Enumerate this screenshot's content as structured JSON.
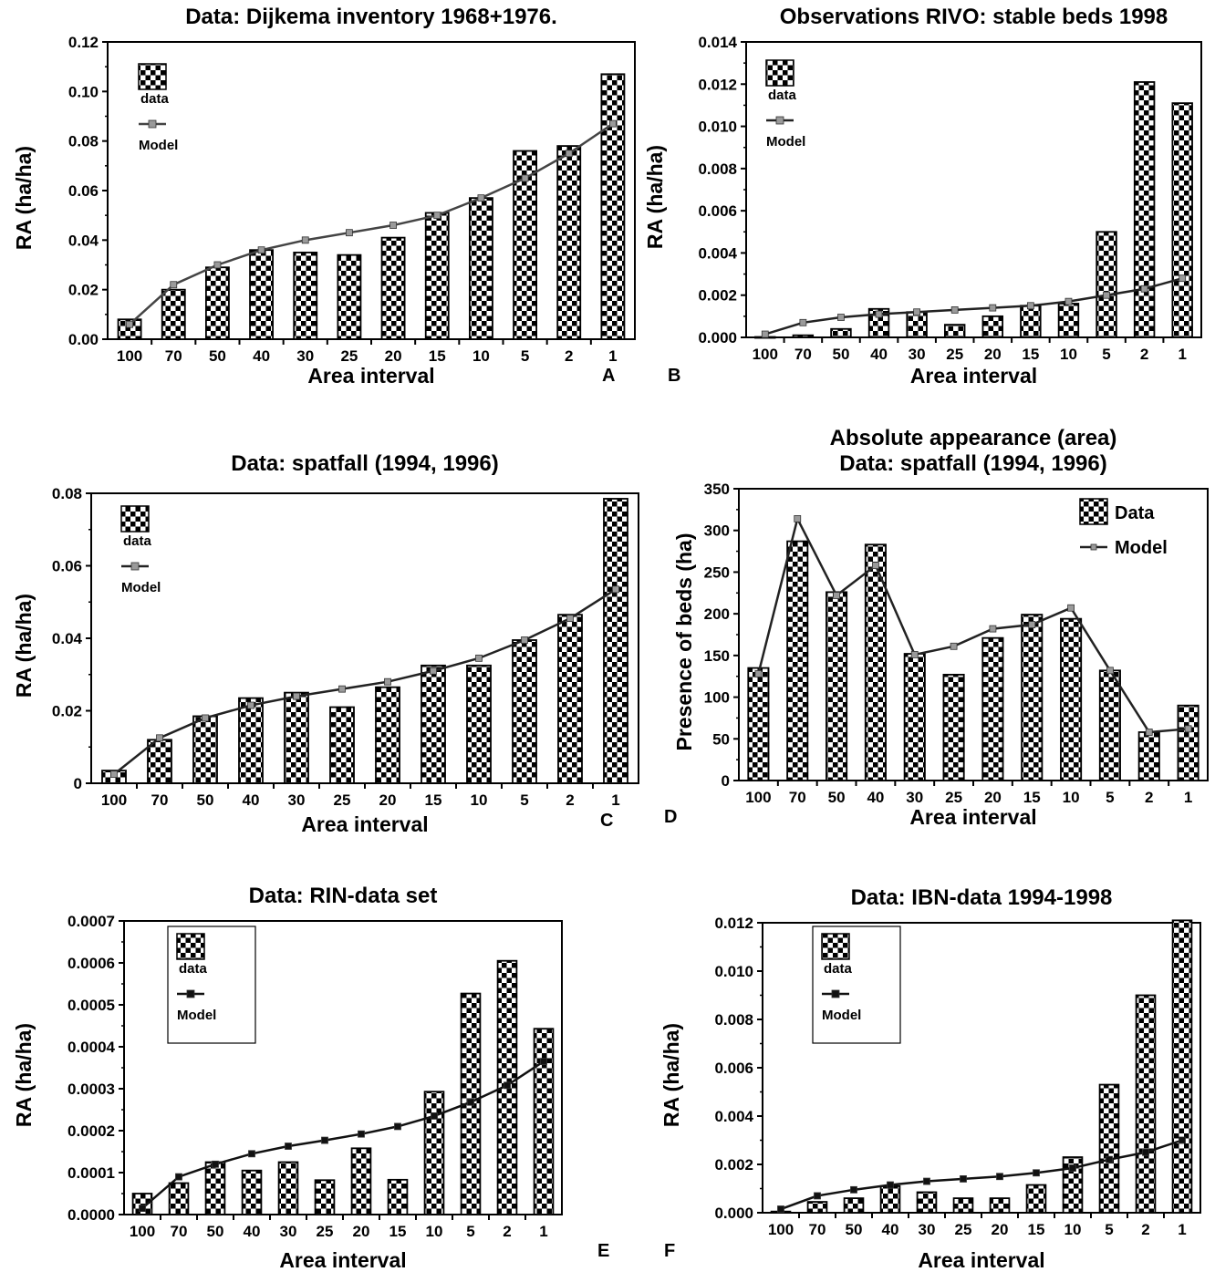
{
  "charts": [
    {
      "type": "bar",
      "title": [
        "Data: Dijkema inventory 1968+1976."
      ],
      "xlabel": "Area interval",
      "ylabel": "RA (ha/ha)",
      "categories": [
        "100",
        "70",
        "50",
        "40",
        "30",
        "25",
        "20",
        "15",
        "10",
        "5",
        "2",
        "1"
      ],
      "ylim": [
        0,
        0.12
      ],
      "yticks": [
        "0.00",
        "0.02",
        "0.04",
        "0.06",
        "0.08",
        "0.10",
        "0.12"
      ],
      "series": [
        {
          "name": "data",
          "type": "bar",
          "values": [
            0.008,
            0.02,
            0.029,
            0.036,
            0.035,
            0.034,
            0.041,
            0.051,
            0.057,
            0.076,
            0.078,
            0.107
          ]
        },
        {
          "name": "Model",
          "type": "line",
          "values": [
            0.006,
            0.022,
            0.03,
            0.036,
            0.04,
            0.043,
            0.046,
            0.05,
            0.057,
            0.065,
            0.075,
            0.087
          ]
        }
      ],
      "legend": {
        "placement": "top-left",
        "style": "stacked-small",
        "box": false
      },
      "panel_letter": "A",
      "colors": {
        "bar_check": "#000000",
        "line": "#444444",
        "marker": "#9a9a9a"
      }
    },
    {
      "type": "bar",
      "title": [
        "Observations RIVO: stable beds 1998"
      ],
      "xlabel": "Area interval",
      "ylabel": "RA (ha/ha)",
      "categories": [
        "100",
        "70",
        "50",
        "40",
        "30",
        "25",
        "20",
        "15",
        "10",
        "5",
        "2",
        "1"
      ],
      "ylim": [
        0,
        0.014
      ],
      "yticks": [
        "0.000",
        "0.002",
        "0.004",
        "0.006",
        "0.008",
        "0.010",
        "0.012",
        "0.014"
      ],
      "series": [
        {
          "name": "data",
          "type": "bar",
          "values": [
            2e-05,
            0.0001,
            0.0004,
            0.00135,
            0.0012,
            0.0006,
            0.001,
            0.0015,
            0.0016,
            0.005,
            0.0121,
            0.0111
          ]
        },
        {
          "name": "Model",
          "type": "line",
          "values": [
            0.00015,
            0.0007,
            0.00095,
            0.0011,
            0.0012,
            0.0013,
            0.0014,
            0.0015,
            0.0017,
            0.002,
            0.0023,
            0.0028
          ]
        }
      ],
      "legend": {
        "placement": "top-left",
        "style": "stacked-small",
        "box": false
      },
      "panel_letter": "B",
      "colors": {
        "bar_check": "#000000",
        "line": "#222222",
        "marker": "#9a9a9a"
      }
    },
    {
      "type": "bar",
      "title": [
        "Data: spatfall (1994, 1996)"
      ],
      "xlabel": "Area interval",
      "ylabel": "RA (ha/ha)",
      "categories": [
        "100",
        "70",
        "50",
        "40",
        "30",
        "25",
        "20",
        "15",
        "10",
        "5",
        "2",
        "1"
      ],
      "ylim": [
        0,
        0.08
      ],
      "yticks": [
        "0",
        "0.02",
        "0.04",
        "0.06",
        "0.08"
      ],
      "series": [
        {
          "name": "data",
          "type": "bar",
          "values": [
            0.0035,
            0.012,
            0.0185,
            0.0235,
            0.025,
            0.021,
            0.0265,
            0.0325,
            0.0325,
            0.0395,
            0.0465,
            0.0785
          ]
        },
        {
          "name": "Model",
          "type": "line",
          "values": [
            0.0025,
            0.0125,
            0.018,
            0.0215,
            0.024,
            0.026,
            0.028,
            0.031,
            0.0345,
            0.0395,
            0.0455,
            0.0535
          ]
        }
      ],
      "legend": {
        "placement": "top-left",
        "style": "stacked-small",
        "box": false
      },
      "panel_letter": "C",
      "colors": {
        "bar_check": "#000000",
        "line": "#222222",
        "marker": "#9a9a9a"
      }
    },
    {
      "type": "bar",
      "title": [
        "Absolute appearance (area)",
        "Data: spatfall (1994, 1996)"
      ],
      "xlabel": "Area interval",
      "ylabel": "Presence of beds (ha)",
      "categories": [
        "100",
        "70",
        "50",
        "40",
        "30",
        "25",
        "20",
        "15",
        "10",
        "5",
        "2",
        "1"
      ],
      "ylim": [
        0,
        350
      ],
      "yticks": [
        "0",
        "50",
        "100",
        "150",
        "200",
        "250",
        "300",
        "350"
      ],
      "series": [
        {
          "name": "Data",
          "type": "bar",
          "values": [
            135,
            287,
            226,
            283,
            152,
            127,
            171,
            199,
            194,
            132,
            58,
            90
          ]
        },
        {
          "name": "Model",
          "type": "line",
          "values": [
            128,
            314,
            222,
            258,
            151,
            161,
            182,
            187,
            207,
            132,
            58,
            62
          ]
        }
      ],
      "legend": {
        "placement": "top-right",
        "style": "inline-large",
        "box": false
      },
      "panel_letter": "D",
      "colors": {
        "bar_check": "#000000",
        "line": "#222222",
        "marker": "#9a9a9a"
      }
    },
    {
      "type": "bar",
      "title": [
        "Data: RIN-data set"
      ],
      "xlabel": "Area interval",
      "ylabel": "RA (ha/ha)",
      "categories": [
        "100",
        "70",
        "50",
        "40",
        "30",
        "25",
        "20",
        "15",
        "10",
        "5",
        "2",
        "1"
      ],
      "ylim": [
        0,
        0.0007
      ],
      "yticks": [
        "0.0000",
        "0.0001",
        "0.0002",
        "0.0003",
        "0.0004",
        "0.0005",
        "0.0006",
        "0.0007"
      ],
      "series": [
        {
          "name": "data",
          "type": "bar",
          "values": [
            5e-05,
            7.5e-05,
            0.000125,
            0.000105,
            0.000125,
            8.2e-05,
            0.000158,
            8.3e-05,
            0.000293,
            0.000527,
            0.000605,
            0.000443
          ]
        },
        {
          "name": "Model",
          "type": "line",
          "values": [
            1.5e-05,
            9e-05,
            0.00012,
            0.000145,
            0.000163,
            0.000177,
            0.000192,
            0.00021,
            0.000235,
            0.000268,
            0.000308,
            0.000365
          ]
        }
      ],
      "legend": {
        "placement": "top-left",
        "style": "stacked-small",
        "box": true
      },
      "panel_letter": "E",
      "colors": {
        "bar_check": "#000000",
        "line": "#111111",
        "marker": "#111111"
      }
    },
    {
      "type": "bar",
      "title": [
        "Data: IBN-data 1994-1998"
      ],
      "xlabel": "Area interval",
      "ylabel": "RA (ha/ha)",
      "categories": [
        "100",
        "70",
        "50",
        "40",
        "30",
        "25",
        "20",
        "15",
        "10",
        "5",
        "2",
        "1"
      ],
      "ylim": [
        0,
        0.012
      ],
      "yticks": [
        "0.000",
        "0.002",
        "0.004",
        "0.006",
        "0.008",
        "0.010",
        "0.012"
      ],
      "series": [
        {
          "name": "data",
          "type": "bar",
          "values": [
            5e-05,
            0.00045,
            0.0006,
            0.0011,
            0.00085,
            0.0006,
            0.0006,
            0.00115,
            0.0023,
            0.0053,
            0.009,
            0.0121
          ]
        },
        {
          "name": "Model",
          "type": "line",
          "values": [
            0.00015,
            0.0007,
            0.00095,
            0.00115,
            0.0013,
            0.0014,
            0.0015,
            0.00165,
            0.00185,
            0.0022,
            0.0025,
            0.003
          ]
        }
      ],
      "legend": {
        "placement": "top-left",
        "style": "stacked-small",
        "box": true
      },
      "panel_letter": "F",
      "colors": {
        "bar_check": "#000000",
        "line": "#111111",
        "marker": "#111111"
      }
    }
  ]
}
